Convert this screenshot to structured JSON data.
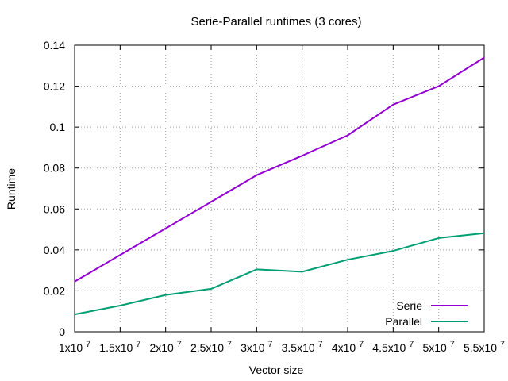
{
  "chart_data": {
    "type": "line",
    "title": "Serie-Parallel runtimes (3 cores)",
    "xlabel": "Vector size",
    "ylabel": "Runtime",
    "x": [
      10000000,
      15000000,
      20000000,
      25000000,
      30000000,
      35000000,
      40000000,
      45000000,
      50000000,
      55000000
    ],
    "xlim": [
      10000000,
      55000000
    ],
    "ylim": [
      0,
      0.14
    ],
    "x_tick_values": [
      10000000,
      15000000,
      20000000,
      25000000,
      30000000,
      35000000,
      40000000,
      45000000,
      50000000,
      55000000
    ],
    "x_tick_mantissas": [
      "1x10",
      "1.5x10",
      "2x10",
      "2.5x10",
      "3x10",
      "3.5x10",
      "4x10",
      "4.5x10",
      "5x10",
      "5.5x10"
    ],
    "x_tick_exponent": "7",
    "y_ticks": [
      0,
      0.02,
      0.04,
      0.06,
      0.08,
      0.1,
      0.12,
      0.14
    ],
    "y_tick_labels": [
      "0",
      "0.02",
      "0.04",
      "0.06",
      "0.08",
      "0.1",
      "0.12",
      "0.14"
    ],
    "grid": true,
    "legend_position": "bottom-right",
    "series": [
      {
        "name": "Serie",
        "color": "#9400d3",
        "values": [
          0.0245,
          0.0375,
          0.0505,
          0.0635,
          0.0765,
          0.086,
          0.096,
          0.111,
          0.12,
          0.134
        ]
      },
      {
        "name": "Parallel",
        "color": "#009e73",
        "values": [
          0.0085,
          0.0128,
          0.018,
          0.021,
          0.0305,
          0.0293,
          0.0352,
          0.0395,
          0.0458,
          0.0482
        ]
      }
    ]
  }
}
